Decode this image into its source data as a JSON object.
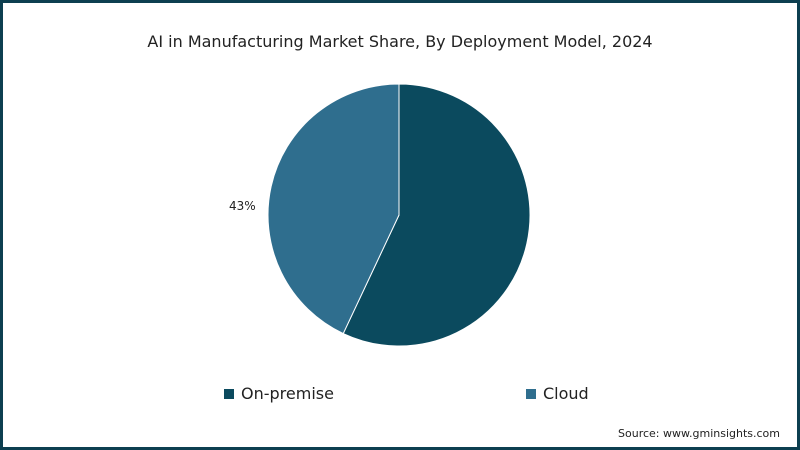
{
  "chart_data": {
    "type": "pie",
    "title": "AI in Manufacturing Market Share, By Deployment Model, 2024",
    "categories": [
      "On-premise",
      "Cloud"
    ],
    "values": [
      57,
      43
    ],
    "colors": [
      "#0b4a5e",
      "#2f6e8e"
    ],
    "data_labels": [
      "",
      "43%"
    ],
    "legend_position": "bottom"
  },
  "legend": [
    {
      "label": "On-premise",
      "color": "#0b4a5e"
    },
    {
      "label": "Cloud",
      "color": "#2f6e8e"
    }
  ],
  "source": "Source: www.gminsights.com"
}
